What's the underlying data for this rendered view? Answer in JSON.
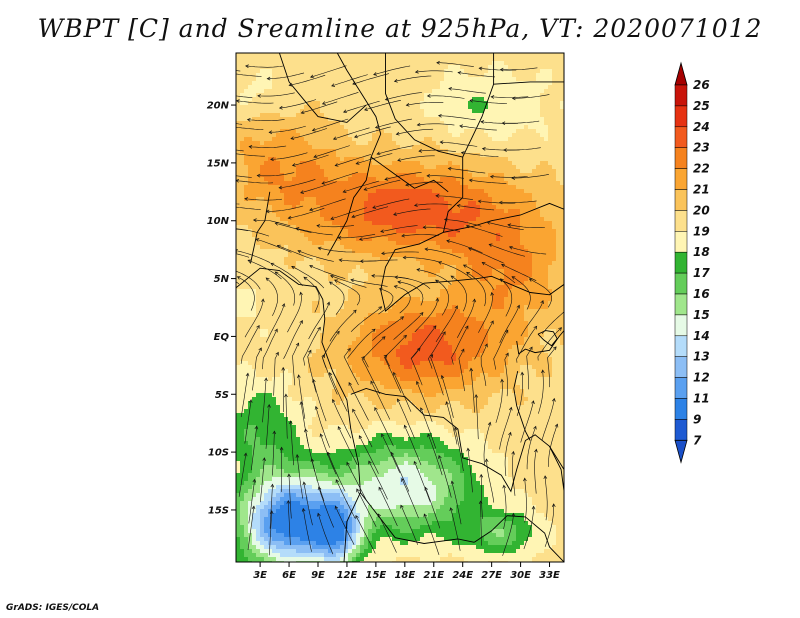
{
  "title": "WBPT [C] and Sreamline at 925hPa, VT: 2020071012",
  "credit": "GrADS: IGES/COLA",
  "map": {
    "variable": "WBPT [C]",
    "level": "925hPa",
    "valid_time": "2020071012",
    "lon_range": [
      0.5,
      34.5
    ],
    "lat_range": [
      -19.5,
      24.5
    ],
    "lat_ticks": [
      {
        "value": 20,
        "label": "20N"
      },
      {
        "value": 15,
        "label": "15N"
      },
      {
        "value": 10,
        "label": "10N"
      },
      {
        "value": 5,
        "label": "5N"
      },
      {
        "value": 0,
        "label": "EQ"
      },
      {
        "value": -5,
        "label": "5S"
      },
      {
        "value": -10,
        "label": "10S"
      },
      {
        "value": -15,
        "label": "15S"
      }
    ],
    "lon_ticks": [
      {
        "value": 3,
        "label": "3E"
      },
      {
        "value": 6,
        "label": "6E"
      },
      {
        "value": 9,
        "label": "9E"
      },
      {
        "value": 12,
        "label": "12E"
      },
      {
        "value": 15,
        "label": "15E"
      },
      {
        "value": 18,
        "label": "18E"
      },
      {
        "value": 21,
        "label": "21E"
      },
      {
        "value": 24,
        "label": "24E"
      },
      {
        "value": 27,
        "label": "27E"
      },
      {
        "value": 30,
        "label": "30E"
      },
      {
        "value": 33,
        "label": "33E"
      }
    ]
  },
  "colorbar": {
    "levels": [
      {
        "label": "26",
        "color": "#a50000"
      },
      {
        "label": "25",
        "color": "#c8140a"
      },
      {
        "label": "24",
        "color": "#e63212"
      },
      {
        "label": "23",
        "color": "#f25a1e"
      },
      {
        "label": "22",
        "color": "#f5821e"
      },
      {
        "label": "21",
        "color": "#faa532"
      },
      {
        "label": "20",
        "color": "#fac35a"
      },
      {
        "label": "19",
        "color": "#fde08c"
      },
      {
        "label": "18",
        "color": "#fff5b4"
      },
      {
        "label": "17",
        "color": "#32b432"
      },
      {
        "label": "16",
        "color": "#64cd5a"
      },
      {
        "label": "15",
        "color": "#a0e68c"
      },
      {
        "label": "14",
        "color": "#e6fae6"
      },
      {
        "label": "13",
        "color": "#b4dcfa"
      },
      {
        "label": "12",
        "color": "#8cbef5"
      },
      {
        "label": "11",
        "color": "#5aa0f0"
      },
      {
        "label": "9",
        "color": "#2d82e6"
      },
      {
        "label": "7",
        "color": "#1e5ad2"
      }
    ],
    "min_color": "#1a4fc8"
  }
}
